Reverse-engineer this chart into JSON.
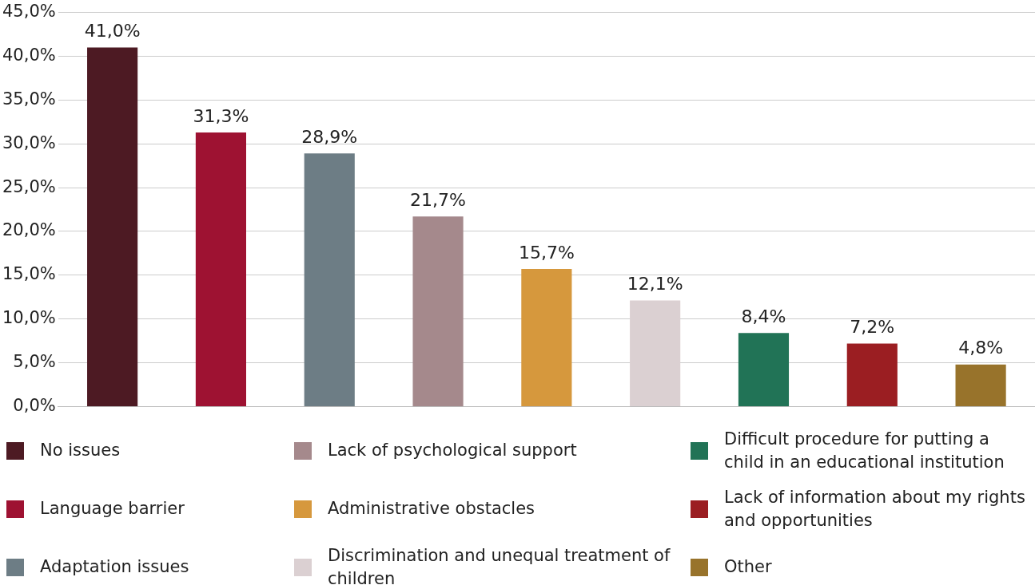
{
  "chart_data": {
    "type": "bar",
    "categories": [
      null,
      null,
      null,
      null,
      null,
      null,
      null,
      null,
      null
    ],
    "series": [
      {
        "name": "No issues",
        "color": "#4d1a23",
        "values": [
          41.0,
          null,
          null,
          null,
          null,
          null,
          null,
          null,
          null
        ],
        "value_labels": [
          "41,0%",
          null,
          null,
          null,
          null,
          null,
          null,
          null,
          null
        ]
      },
      {
        "name": "Language barrier",
        "color": "#9e1232",
        "values": [
          null,
          31.3,
          null,
          null,
          null,
          null,
          null,
          null,
          null
        ],
        "value_labels": [
          null,
          "31,3%",
          null,
          null,
          null,
          null,
          null,
          null,
          null
        ]
      },
      {
        "name": "Adaptation issues",
        "color": "#6d7d85",
        "values": [
          null,
          null,
          28.9,
          null,
          null,
          null,
          null,
          null,
          null
        ],
        "value_labels": [
          null,
          null,
          "28,9%",
          null,
          null,
          null,
          null,
          null,
          null
        ]
      },
      {
        "name": "Lack of psychological support",
        "color": "#a5898c",
        "values": [
          null,
          null,
          null,
          21.7,
          null,
          null,
          null,
          null,
          null
        ],
        "value_labels": [
          null,
          null,
          null,
          "21,7%",
          null,
          null,
          null,
          null,
          null
        ]
      },
      {
        "name": "Administrative obstacles",
        "color": "#d6983d",
        "values": [
          null,
          null,
          null,
          null,
          15.7,
          null,
          null,
          null,
          null
        ],
        "value_labels": [
          null,
          null,
          null,
          null,
          "15,7%",
          null,
          null,
          null,
          null
        ]
      },
      {
        "name": "Discrimination and unequal treatment of children",
        "color": "#dbd0d2",
        "values": [
          null,
          null,
          null,
          null,
          null,
          12.1,
          null,
          null,
          null
        ],
        "value_labels": [
          null,
          null,
          null,
          null,
          null,
          "12,1%",
          null,
          null,
          null
        ]
      },
      {
        "name": "Difficult procedure for putting a child in an educational institution",
        "color": "#217356",
        "values": [
          null,
          null,
          null,
          null,
          null,
          null,
          8.4,
          null,
          null
        ],
        "value_labels": [
          null,
          null,
          null,
          null,
          null,
          null,
          "8,4%",
          null,
          null
        ]
      },
      {
        "name": "Lack of information about my rights and opportunities",
        "color": "#9b1e22",
        "values": [
          null,
          null,
          null,
          null,
          null,
          null,
          null,
          7.2,
          null
        ],
        "value_labels": [
          null,
          null,
          null,
          null,
          null,
          null,
          null,
          "7,2%",
          null
        ]
      },
      {
        "name": "Other",
        "color": "#98732b",
        "values": [
          null,
          null,
          null,
          null,
          null,
          null,
          null,
          null,
          4.8
        ],
        "value_labels": [
          null,
          null,
          null,
          null,
          null,
          null,
          null,
          null,
          "4,8%"
        ]
      }
    ],
    "ylim": [
      0,
      45
    ],
    "yticks": [
      {
        "value": 0,
        "label": "0,0%"
      },
      {
        "value": 5,
        "label": "5,0%"
      },
      {
        "value": 10,
        "label": "10,0%"
      },
      {
        "value": 15,
        "label": "15,0%"
      },
      {
        "value": 20,
        "label": "20,0%"
      },
      {
        "value": 25,
        "label": "25,0%"
      },
      {
        "value": 30,
        "label": "30,0%"
      },
      {
        "value": 35,
        "label": "35,0%"
      },
      {
        "value": 40,
        "label": "40,0%"
      },
      {
        "value": 45,
        "label": "45,0%"
      }
    ],
    "grid": "y",
    "legend": "bottom",
    "tick_labels": "y"
  }
}
